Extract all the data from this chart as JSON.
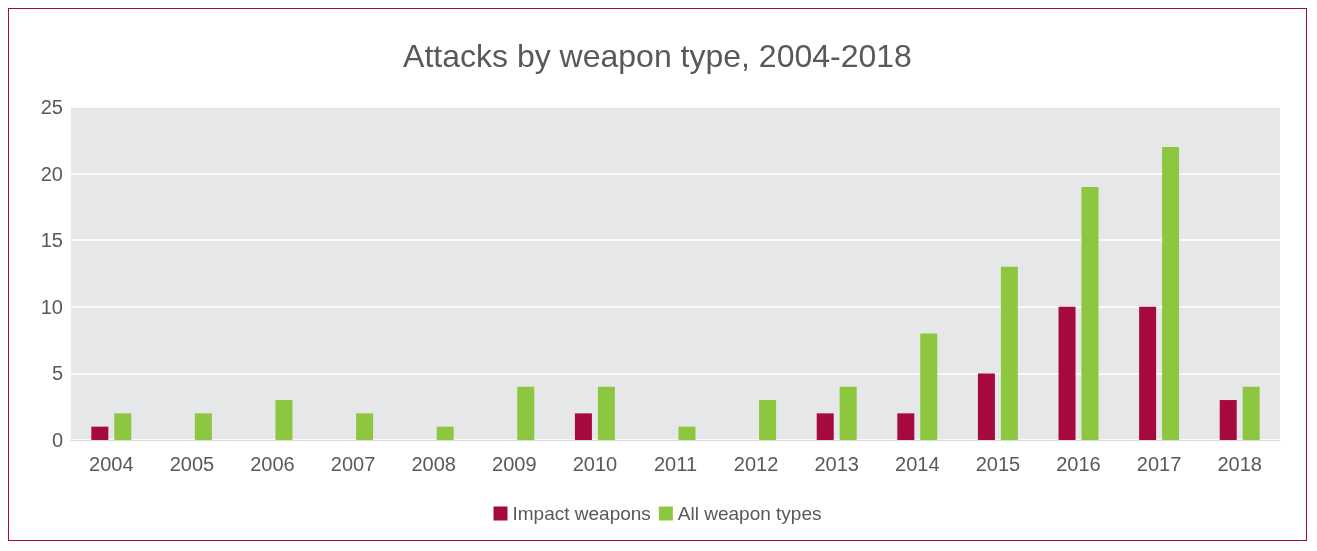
{
  "chart_data": {
    "type": "bar",
    "title": "Attacks by weapon type, 2004-2018",
    "categories": [
      "2004",
      "2005",
      "2006",
      "2007",
      "2008",
      "2009",
      "2010",
      "2011",
      "2012",
      "2013",
      "2014",
      "2015",
      "2016",
      "2017",
      "2018"
    ],
    "series": [
      {
        "name": "Impact weapons",
        "color": "#a5093f",
        "values": [
          1,
          0,
          0,
          0,
          0,
          0,
          2,
          0,
          0,
          2,
          2,
          5,
          10,
          10,
          3
        ]
      },
      {
        "name": "All weapon types",
        "color": "#8dc63f",
        "values": [
          2,
          2,
          3,
          2,
          1,
          4,
          4,
          1,
          3,
          4,
          8,
          13,
          19,
          22,
          4
        ]
      }
    ],
    "ylim": [
      0,
      25
    ],
    "yticks": [
      0,
      5,
      10,
      15,
      20,
      25
    ],
    "grid": "y",
    "legend": "bottom"
  }
}
